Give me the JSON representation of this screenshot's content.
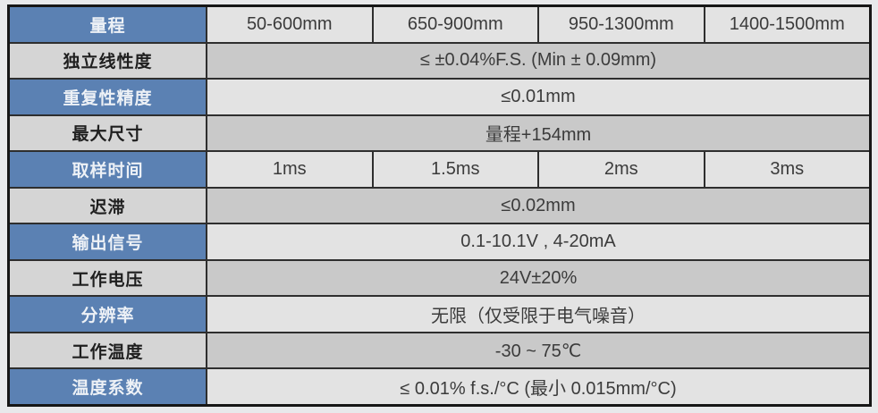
{
  "page": {
    "background_color": "#e8e9eb"
  },
  "table": {
    "colors": {
      "accent_blue": "#5b81b3",
      "label_gray": "#d5d5d5",
      "value_light": "#e3e3e3",
      "value_dark": "#c9c9c9",
      "border_dark": "#161616",
      "grid_line": "#2e2e2e",
      "blue_label_text": "#edf1f6",
      "gray_label_text": "#1f1f1f",
      "value_text": "#3b3b3b"
    },
    "rows": [
      {
        "label": "量程",
        "style": "blue",
        "values": [
          "50-600mm",
          "650-900mm",
          "950-1300mm",
          "1400-1500mm"
        ]
      },
      {
        "label": "独立线性度",
        "style": "gray",
        "values": [
          "≤ ±0.04%F.S. (Min ± 0.09mm)"
        ]
      },
      {
        "label": "重复性精度",
        "style": "blue",
        "values": [
          "≤0.01mm"
        ]
      },
      {
        "label": "最大尺寸",
        "style": "gray",
        "values": [
          "量程+154mm"
        ]
      },
      {
        "label": "取样时间",
        "style": "blue",
        "values": [
          "1ms",
          "1.5ms",
          "2ms",
          "3ms"
        ]
      },
      {
        "label": "迟滞",
        "style": "gray",
        "values": [
          "≤0.02mm"
        ]
      },
      {
        "label": "输出信号",
        "style": "blue",
        "values": [
          "0.1-10.1V , 4-20mA"
        ]
      },
      {
        "label": "工作电压",
        "style": "gray",
        "values": [
          "24V±20%"
        ]
      },
      {
        "label": "分辨率",
        "style": "blue",
        "values": [
          "无限（仅受限于电气噪音）"
        ]
      },
      {
        "label": "工作温度",
        "style": "gray",
        "values": [
          "-30 ~ 75℃"
        ]
      },
      {
        "label": "温度系数",
        "style": "blue",
        "values": [
          "≤ 0.01% f.s./°C (最小 0.015mm/°C)"
        ]
      }
    ]
  }
}
